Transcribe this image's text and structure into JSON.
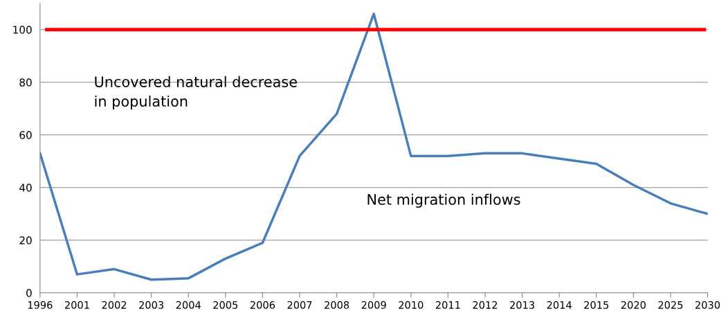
{
  "chart_data": {
    "type": "line",
    "categories": [
      "1996",
      "2001",
      "2002",
      "2003",
      "2004",
      "2005",
      "2006",
      "2007",
      "2008",
      "2009",
      "2010",
      "2011",
      "2012",
      "2013",
      "2014",
      "2015",
      "2020",
      "2025",
      "2030"
    ],
    "series": [
      {
        "color": "#4a7ebb",
        "values": [
          53,
          7,
          9,
          5,
          5.5,
          13,
          19,
          52,
          68,
          106,
          52,
          52,
          53,
          53,
          51,
          49,
          41,
          34,
          30
        ]
      }
    ],
    "ylim": [
      0,
      110
    ],
    "yticks": [
      0,
      20,
      40,
      60,
      80,
      100
    ],
    "grid": "y",
    "marker": "none",
    "line_style": "solid",
    "ref_lines": [
      {
        "axis": "y",
        "value": 100,
        "color": "#ff0000"
      }
    ],
    "annotations": [
      "Uncovered natural decrease\nin population",
      "Net migration inflows"
    ]
  }
}
